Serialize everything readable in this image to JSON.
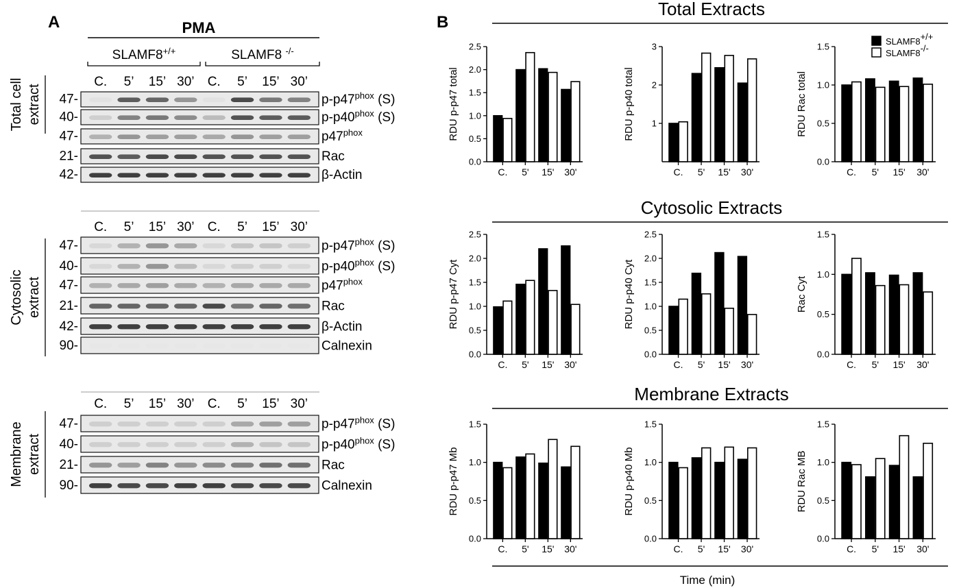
{
  "panel_a": {
    "letter": "A",
    "treatment": "PMA",
    "genotypes": [
      {
        "base": "SLAMF8",
        "sup": "+/+"
      },
      {
        "base": "SLAMF8 ",
        "sup": "-/-"
      }
    ],
    "sections": [
      {
        "id": "total",
        "label_lines": [
          "Total cell",
          "extract"
        ],
        "lanes": [
          "C.",
          "5’",
          "15’",
          "30’",
          "C.",
          "5’",
          "15’",
          "30’"
        ],
        "rows": [
          {
            "mw": "47-",
            "name": "p-p47",
            "sup": "phox",
            "suffix": " (S)",
            "intensity": [
              0.05,
              0.75,
              0.7,
              0.45,
              0.05,
              0.85,
              0.6,
              0.55
            ]
          },
          {
            "mw": "40-",
            "name": "p-p40",
            "sup": "phox",
            "suffix": " (S)",
            "intensity": [
              0.15,
              0.55,
              0.6,
              0.5,
              0.25,
              0.8,
              0.75,
              0.75
            ]
          },
          {
            "mw": "47-",
            "name": "p47",
            "sup": "phox",
            "suffix": "",
            "intensity": [
              0.3,
              0.45,
              0.4,
              0.4,
              0.35,
              0.45,
              0.4,
              0.4
            ]
          },
          {
            "mw": "21-",
            "name": "Rac",
            "sup": "",
            "suffix": "",
            "intensity": [
              0.8,
              0.75,
              0.85,
              0.85,
              0.8,
              0.8,
              0.8,
              0.8
            ]
          },
          {
            "mw": "42-",
            "name": "β-Actin",
            "sup": "",
            "suffix": "",
            "intensity": [
              0.9,
              0.9,
              0.9,
              0.9,
              0.9,
              0.9,
              0.9,
              0.9
            ]
          }
        ]
      },
      {
        "id": "cyto",
        "label_lines": [
          "Cytosolic",
          "extract"
        ],
        "lanes": [
          "C.",
          "5’",
          "15’",
          "30’",
          "C.",
          "5’",
          "15’",
          "30’"
        ],
        "rows": [
          {
            "mw": "47-",
            "name": "p-p47",
            "sup": "phox",
            "suffix": " (S)",
            "intensity": [
              0.1,
              0.3,
              0.45,
              0.35,
              0.1,
              0.2,
              0.2,
              0.15
            ]
          },
          {
            "mw": "40-",
            "name": "p-p40",
            "sup": "phox",
            "suffix": " (S)",
            "intensity": [
              0.1,
              0.3,
              0.45,
              0.25,
              0.1,
              0.15,
              0.15,
              0.1
            ]
          },
          {
            "mw": "47-",
            "name": "p47",
            "sup": "phox",
            "suffix": "",
            "intensity": [
              0.3,
              0.35,
              0.4,
              0.35,
              0.3,
              0.35,
              0.35,
              0.35
            ]
          },
          {
            "mw": "21-",
            "name": "Rac",
            "sup": "",
            "suffix": "",
            "intensity": [
              0.7,
              0.7,
              0.7,
              0.7,
              0.85,
              0.6,
              0.7,
              0.65
            ]
          },
          {
            "mw": "42-",
            "name": "β-Actin",
            "sup": "",
            "suffix": "",
            "intensity": [
              0.9,
              0.9,
              0.9,
              0.9,
              0.9,
              0.9,
              0.9,
              0.9
            ]
          },
          {
            "mw": "90-",
            "name": "Calnexin",
            "sup": "",
            "suffix": "",
            "intensity": [
              0.02,
              0.02,
              0.02,
              0.02,
              0.02,
              0.02,
              0.02,
              0.02
            ]
          }
        ]
      },
      {
        "id": "memb",
        "label_lines": [
          "Membrane",
          "extract"
        ],
        "lanes": [
          "C.",
          "5’",
          "15’",
          "30’",
          "C.",
          "5’",
          "15’",
          "30’"
        ],
        "rows": [
          {
            "mw": "47-",
            "name": "p-p47",
            "sup": "phox",
            "suffix": " (S)",
            "intensity": [
              0.15,
              0.15,
              0.15,
              0.15,
              0.15,
              0.35,
              0.4,
              0.4
            ]
          },
          {
            "mw": "40-",
            "name": "p-p40",
            "sup": "phox",
            "suffix": " (S)",
            "intensity": [
              0.15,
              0.15,
              0.15,
              0.15,
              0.15,
              0.3,
              0.2,
              0.2
            ]
          },
          {
            "mw": "21-",
            "name": "Rac",
            "sup": "",
            "suffix": "",
            "intensity": [
              0.45,
              0.4,
              0.55,
              0.45,
              0.5,
              0.55,
              0.65,
              0.65
            ]
          },
          {
            "mw": "90-",
            "name": "Calnexin",
            "sup": "",
            "suffix": "",
            "intensity": [
              0.9,
              0.85,
              0.85,
              0.9,
              0.9,
              0.85,
              0.85,
              0.85
            ]
          }
        ]
      }
    ]
  },
  "panel_b": {
    "letter": "B",
    "group_titles": [
      "Total Extracts",
      "Cytosolic Extracts",
      "Membrane Extracts"
    ],
    "x_axis_title": "Time (min)",
    "legend": [
      {
        "base": "SLAMF8",
        "sup": "+/+",
        "fill": "#000000"
      },
      {
        "base": "SLAMF8",
        "sup": "-/-",
        "fill": "#ffffff"
      }
    ]
  },
  "chart_data": [
    {
      "type": "bar",
      "ylabel": "RDU p-p47 total",
      "categories": [
        "C.",
        "5'",
        "15'",
        "30'"
      ],
      "ylim": [
        0,
        2.5
      ],
      "yticks": [
        0.0,
        0.5,
        1.0,
        1.5,
        2.0,
        2.5
      ],
      "tick_decimals": 1,
      "series": [
        {
          "name": "SLAMF8+/+",
          "values": [
            1.0,
            2.0,
            2.02,
            1.57
          ]
        },
        {
          "name": "SLAMF8-/-",
          "values": [
            0.94,
            2.37,
            1.94,
            1.74
          ]
        }
      ]
    },
    {
      "type": "bar",
      "ylabel": "RDU p-p40 total",
      "categories": [
        "C.",
        "5'",
        "15'",
        "30'"
      ],
      "ylim": [
        0,
        3
      ],
      "yticks": [
        1,
        2,
        3
      ],
      "tick_decimals": 0,
      "series": [
        {
          "name": "SLAMF8+/+",
          "values": [
            1.0,
            2.3,
            2.45,
            2.05
          ]
        },
        {
          "name": "SLAMF8-/-",
          "values": [
            1.04,
            2.83,
            2.77,
            2.68
          ]
        }
      ]
    },
    {
      "type": "bar",
      "ylabel": "RDU Rac total",
      "categories": [
        "C.",
        "5'",
        "15'",
        "30'"
      ],
      "ylim": [
        0,
        1.5
      ],
      "yticks": [
        0.0,
        0.5,
        1.0,
        1.5
      ],
      "tick_decimals": 1,
      "series": [
        {
          "name": "SLAMF8+/+",
          "values": [
            1.0,
            1.08,
            1.05,
            1.09
          ]
        },
        {
          "name": "SLAMF8-/-",
          "values": [
            1.04,
            0.97,
            0.98,
            1.01
          ]
        }
      ]
    },
    {
      "type": "bar",
      "ylabel": "RDU p-p47 Cyt",
      "categories": [
        "C.",
        "5'",
        "15'",
        "30'"
      ],
      "ylim": [
        0,
        2.5
      ],
      "yticks": [
        0.0,
        0.5,
        1.0,
        1.5,
        2.0,
        2.5
      ],
      "tick_decimals": 1,
      "series": [
        {
          "name": "SLAMF8+/+",
          "values": [
            0.99,
            1.46,
            2.2,
            2.26
          ]
        },
        {
          "name": "SLAMF8-/-",
          "values": [
            1.11,
            1.54,
            1.33,
            1.04
          ]
        }
      ]
    },
    {
      "type": "bar",
      "ylabel": "RDU p-p40 Cyt",
      "categories": [
        "C.",
        "5'",
        "15'",
        "30'"
      ],
      "ylim": [
        0,
        2.5
      ],
      "yticks": [
        0.0,
        0.5,
        1.0,
        1.5,
        2.0,
        2.5
      ],
      "tick_decimals": 1,
      "series": [
        {
          "name": "SLAMF8+/+",
          "values": [
            1.0,
            1.69,
            2.12,
            2.04
          ]
        },
        {
          "name": "SLAMF8-/-",
          "values": [
            1.15,
            1.26,
            0.96,
            0.83
          ]
        }
      ]
    },
    {
      "type": "bar",
      "ylabel": "Rac Cyt",
      "categories": [
        "C.",
        "5'",
        "15'",
        "30'"
      ],
      "ylim": [
        0,
        1.5
      ],
      "yticks": [
        0.0,
        0.5,
        1.0,
        1.5
      ],
      "tick_decimals": 1,
      "series": [
        {
          "name": "SLAMF8+/+",
          "values": [
            1.0,
            1.02,
            0.99,
            1.02
          ]
        },
        {
          "name": "SLAMF8-/-",
          "values": [
            1.2,
            0.86,
            0.87,
            0.78
          ]
        }
      ]
    },
    {
      "type": "bar",
      "ylabel": "RDU p-p47 Mb",
      "categories": [
        "C.",
        "5'",
        "15'",
        "30'"
      ],
      "ylim": [
        0,
        1.5
      ],
      "yticks": [
        0.0,
        0.5,
        1.0,
        1.5
      ],
      "tick_decimals": 1,
      "series": [
        {
          "name": "SLAMF8+/+",
          "values": [
            1.0,
            1.07,
            0.99,
            0.94
          ]
        },
        {
          "name": "SLAMF8-/-",
          "values": [
            0.93,
            1.11,
            1.3,
            1.21
          ]
        }
      ]
    },
    {
      "type": "bar",
      "ylabel": "RDU p-p40 Mb",
      "categories": [
        "C.",
        "5'",
        "15'",
        "30'"
      ],
      "ylim": [
        0,
        1.5
      ],
      "yticks": [
        0.0,
        0.5,
        1.0,
        1.5
      ],
      "tick_decimals": 1,
      "series": [
        {
          "name": "SLAMF8+/+",
          "values": [
            1.0,
            1.06,
            1.0,
            1.04
          ]
        },
        {
          "name": "SLAMF8-/-",
          "values": [
            0.93,
            1.19,
            1.2,
            1.19
          ]
        }
      ]
    },
    {
      "type": "bar",
      "ylabel": "RDU Rac MB",
      "categories": [
        "C.",
        "5'",
        "15'",
        "30'"
      ],
      "ylim": [
        0,
        1.5
      ],
      "yticks": [
        0.0,
        0.5,
        1.0,
        1.5
      ],
      "tick_decimals": 1,
      "series": [
        {
          "name": "SLAMF8+/+",
          "values": [
            1.0,
            0.81,
            0.96,
            0.81
          ]
        },
        {
          "name": "SLAMF8-/-",
          "values": [
            0.97,
            1.05,
            1.35,
            1.25
          ]
        }
      ]
    }
  ]
}
